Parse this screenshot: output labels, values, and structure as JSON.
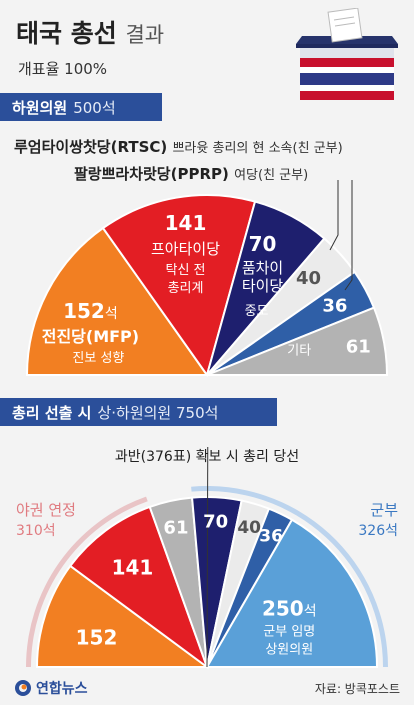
{
  "title": {
    "main": "태국 총선",
    "sub": "결과"
  },
  "subtitle": "개표율 100%",
  "section1": {
    "label": "하원의원",
    "seats": "500석"
  },
  "section1_parties": {
    "rtsc": {
      "name": "루엄타이쌍찻당(RTSC)",
      "desc": "쁘라윳 총리의 현 소속(친 군부)"
    },
    "pprp": {
      "name": "팔랑쁘라차랏당(PPRP)",
      "desc": "여당(친 군부)"
    }
  },
  "section2": {
    "label": "총리 선출 시",
    "desc": "상·하원의원 750석"
  },
  "majority_note": "과반(376표) 확보 시 총리 당선",
  "opposition": {
    "label": "야권 연정",
    "seats": "310석"
  },
  "military": {
    "label": "군부",
    "seats": "326석"
  },
  "footer": {
    "logo": "연합뉴스",
    "source": "자료: 방콕포스트"
  },
  "colors": {
    "mfp": "#f27f22",
    "pheu_thai": "#e31e24",
    "bhumjai": "#1e1f6e",
    "pprp": "#ebebeb",
    "rtsc": "#2f5fa7",
    "others": "#b3b3b3",
    "senate": "#5aa0d8",
    "accent": "#2b4f9a"
  },
  "chart_data": [
    {
      "type": "pie",
      "title": "하원의원 500석",
      "categories": [
        "전진당(MFP)",
        "프아타이당",
        "품차이타이당",
        "팔랑쁘라차랏당(PPRP)",
        "루엄타이쌍찻당(RTSC)",
        "기타"
      ],
      "values": [
        152,
        141,
        70,
        40,
        36,
        61
      ],
      "slice_labels": [
        {
          "value": "152",
          "unit": "석",
          "name": "전진당(MFP)",
          "desc": "진보 성향"
        },
        {
          "value": "141",
          "unit": "",
          "name": "프아타이당",
          "desc": "탁신 전 총리계"
        },
        {
          "value": "70",
          "unit": "",
          "name": "품차이 타이당",
          "desc": "중도"
        },
        {
          "value": "40",
          "unit": "",
          "name": "",
          "desc": ""
        },
        {
          "value": "36",
          "unit": "",
          "name": "",
          "desc": ""
        },
        {
          "value": "61",
          "unit": "",
          "name": "",
          "desc": "기타"
        }
      ]
    },
    {
      "type": "pie",
      "title": "상·하원의원 750석",
      "categories": [
        "전진당(MFP)",
        "프아타이당",
        "기타",
        "품차이타이당",
        "팔랑쁘라차랏당(PPRP)",
        "루엄타이쌍찻당(RTSC)",
        "상원의원"
      ],
      "values": [
        152,
        141,
        61,
        70,
        40,
        36,
        250
      ],
      "slice_labels": [
        {
          "value": "152",
          "unit": "",
          "desc": ""
        },
        {
          "value": "141",
          "unit": "",
          "desc": ""
        },
        {
          "value": "61",
          "unit": "",
          "desc": ""
        },
        {
          "value": "70",
          "unit": "",
          "desc": ""
        },
        {
          "value": "40",
          "unit": "",
          "desc": ""
        },
        {
          "value": "36",
          "unit": "",
          "desc": ""
        },
        {
          "value": "250",
          "unit": "석",
          "desc": "군부 임명 상원의원"
        }
      ]
    }
  ]
}
